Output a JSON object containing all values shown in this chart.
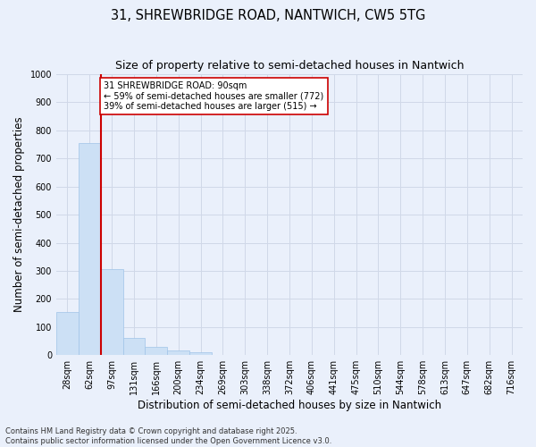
{
  "title_line1": "31, SHREWBRIDGE ROAD, NANTWICH, CW5 5TG",
  "title_line2": "Size of property relative to semi-detached houses in Nantwich",
  "xlabel": "Distribution of semi-detached houses by size in Nantwich",
  "ylabel": "Number of semi-detached properties",
  "categories": [
    "28sqm",
    "62sqm",
    "97sqm",
    "131sqm",
    "166sqm",
    "200sqm",
    "234sqm",
    "269sqm",
    "303sqm",
    "338sqm",
    "372sqm",
    "406sqm",
    "441sqm",
    "475sqm",
    "510sqm",
    "544sqm",
    "578sqm",
    "613sqm",
    "647sqm",
    "682sqm",
    "716sqm"
  ],
  "values": [
    155,
    755,
    305,
    60,
    30,
    15,
    10,
    0,
    0,
    0,
    0,
    0,
    0,
    0,
    0,
    0,
    0,
    0,
    0,
    0,
    0
  ],
  "bar_color": "#cce0f5",
  "bar_edge_color": "#a0c4e8",
  "grid_color": "#d0d8e8",
  "background_color": "#eaf0fb",
  "vline_color": "#cc0000",
  "annotation_text": "31 SHREWBRIDGE ROAD: 90sqm\n← 59% of semi-detached houses are smaller (772)\n39% of semi-detached houses are larger (515) →",
  "annotation_box_color": "#ffffff",
  "annotation_box_edge": "#cc0000",
  "ylim": [
    0,
    1000
  ],
  "yticks": [
    0,
    100,
    200,
    300,
    400,
    500,
    600,
    700,
    800,
    900,
    1000
  ],
  "footnote": "Contains HM Land Registry data © Crown copyright and database right 2025.\nContains public sector information licensed under the Open Government Licence v3.0.",
  "title_fontsize": 10.5,
  "subtitle_fontsize": 9,
  "tick_fontsize": 7,
  "ylabel_fontsize": 8.5,
  "xlabel_fontsize": 8.5,
  "annot_fontsize": 7,
  "footnote_fontsize": 6
}
